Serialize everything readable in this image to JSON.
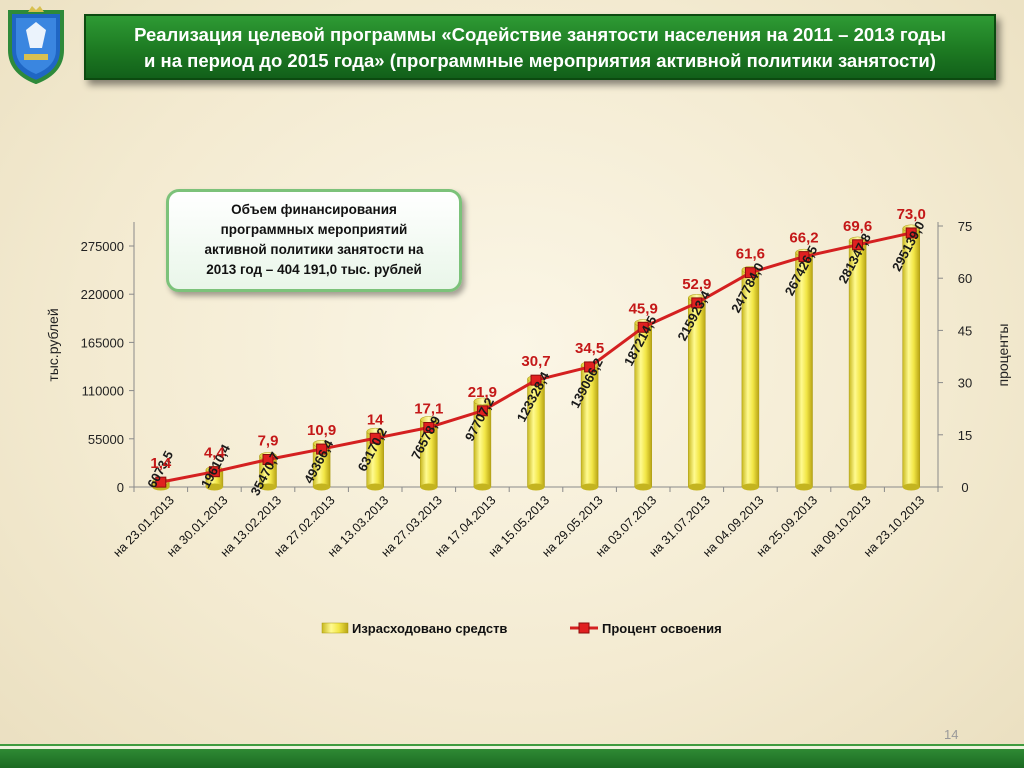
{
  "title": {
    "line1": "Реализация целевой программы «Содействие занятости населения на 2011 – 2013 годы",
    "line2": "и на период до 2015 года» (программные мероприятия активной политики занятости)"
  },
  "info_box": {
    "line1": "Объем финансирования",
    "line2": "программных мероприятий",
    "line3": "активной политики занятости на",
    "line4": "2013 год – 404 191,0 тыс. рублей"
  },
  "page_number": "14",
  "colors": {
    "title_bg": "#1d7a22",
    "bar": "#f0e040",
    "line": "#d42020",
    "marker": "#e02020",
    "pct_label": "#c41818"
  },
  "emblem_icon": "coat-of-arms-icon",
  "chart_data": {
    "type": "bar+line",
    "categories": [
      "на 23.01.2013",
      "на 30.01.2013",
      "на 13.02.2013",
      "на 27.02.2013",
      "на 13.03.2013",
      "на 27.03.2013",
      "на 17.04.2013",
      "на 15.05.2013",
      "на 29.05.2013",
      "на 03.07.2013",
      "на 31.07.2013",
      "на 04.09.2013",
      "на 25.09.2013",
      "на 09.10.2013",
      "на 23.10.2013"
    ],
    "series": [
      {
        "name": "Израсходовано  средств",
        "type": "bar",
        "axis": "left",
        "values": [
          6073.5,
          19610.4,
          35470.7,
          49366.4,
          63170.2,
          76578.9,
          97707.2,
          123328.4,
          139066.2,
          187214.5,
          215923.4,
          247784.0,
          267426.5,
          281347.8,
          295139.0
        ],
        "labels": [
          "6073,5",
          "19610,4",
          "35470,7",
          "49366,4",
          "63170,2",
          "76578,9",
          "97707,2",
          "123328,4",
          "139066,2",
          "187214,5",
          "215923,4",
          "247784,0",
          "267426,5",
          "281347,8",
          "295139,0"
        ]
      },
      {
        "name": "Процент освоения",
        "type": "line",
        "axis": "right",
        "values": [
          1.4,
          4.4,
          7.9,
          10.9,
          14,
          17.1,
          21.9,
          30.7,
          34.5,
          45.9,
          52.9,
          61.6,
          66.2,
          69.6,
          73.0
        ],
        "labels": [
          "1,4",
          "4,4",
          "7,9",
          "10,9",
          "14",
          "17,1",
          "21,9",
          "30,7",
          "34,5",
          "45,9",
          "52,9",
          "61,6",
          "66,2",
          "69,6",
          "73,0"
        ]
      }
    ],
    "ylabel_left": "тыс.рублей",
    "ylabel_right": "проценты",
    "ylim_left": [
      0,
      300000
    ],
    "yticks_left": [
      0,
      55000,
      110000,
      165000,
      220000,
      275000
    ],
    "ylim_right": [
      0,
      75
    ],
    "yticks_right": [
      0,
      15,
      30,
      45,
      60,
      75
    ],
    "legend_position": "bottom",
    "grid": false
  }
}
